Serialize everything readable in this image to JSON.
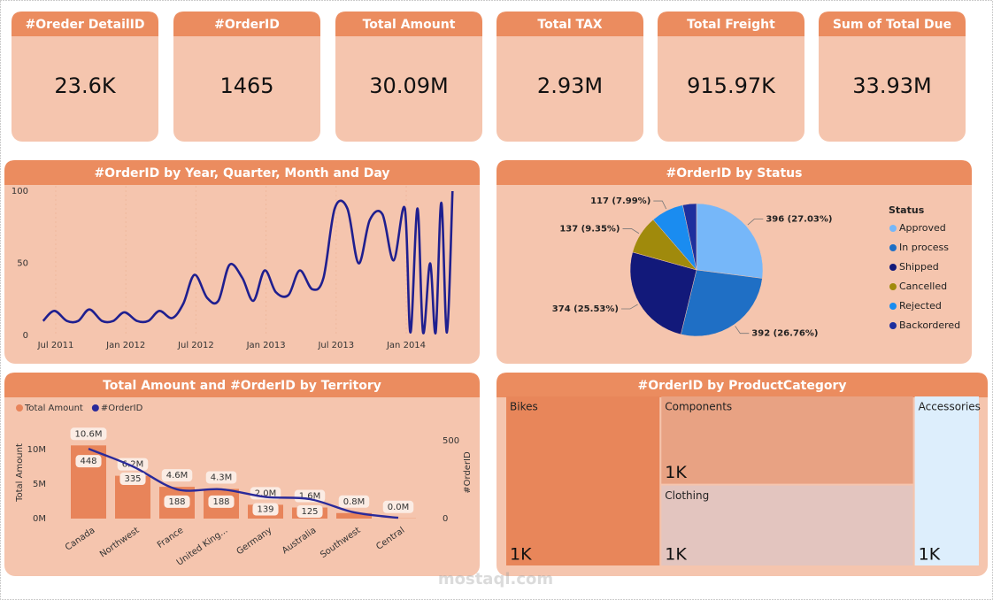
{
  "cards": [
    {
      "title": "#Oreder DetailID",
      "value": "23.6K"
    },
    {
      "title": "#OrderID",
      "value": "1465"
    },
    {
      "title": "Total Amount",
      "value": "30.09M"
    },
    {
      "title": "Total TAX",
      "value": "2.93M"
    },
    {
      "title": "Total Freight",
      "value": "915.97K"
    },
    {
      "title": "Sum of Total Due",
      "value": "33.93M"
    }
  ],
  "chart_data": [
    {
      "type": "line",
      "title": "#OrderID by Year, Quarter, Month and Day",
      "x": [
        2011.41,
        2011.49,
        2011.58,
        2011.66,
        2011.74,
        2011.83,
        2011.91,
        2011.99,
        2012.08,
        2012.16,
        2012.24,
        2012.33,
        2012.41,
        2012.49,
        2012.58,
        2012.66,
        2012.74,
        2012.83,
        2012.91,
        2012.99,
        2013.07,
        2013.16,
        2013.24,
        2013.33,
        2013.41,
        2013.49,
        2013.58,
        2013.66,
        2013.74,
        2013.83,
        2013.91,
        2013.99,
        2014.03,
        2014.08,
        2014.12,
        2014.17,
        2014.21,
        2014.25,
        2014.29,
        2014.33
      ],
      "values": [
        10,
        17,
        10,
        10,
        18,
        10,
        10,
        16,
        10,
        10,
        17,
        12,
        22,
        42,
        26,
        24,
        49,
        40,
        24,
        45,
        30,
        28,
        45,
        32,
        40,
        88,
        88,
        50,
        80,
        84,
        52,
        88,
        2,
        88,
        2,
        50,
        2,
        92,
        2,
        100
      ],
      "color": "#1f1f8f",
      "xlim": [
        2011.355,
        2014.385
      ],
      "xticks": [
        {
          "value": 2011.5,
          "label": "Jul 2011"
        },
        {
          "value": 2012.0,
          "label": "Jan 2012"
        },
        {
          "value": 2012.5,
          "label": "Jul 2012"
        },
        {
          "value": 2013.0,
          "label": "Jan 2013"
        },
        {
          "value": 2013.5,
          "label": "Jul 2013"
        },
        {
          "value": 2014.0,
          "label": "Jan 2014"
        }
      ],
      "ylim": [
        0,
        100
      ],
      "yticks": [
        0,
        50,
        100
      ]
    },
    {
      "type": "pie",
      "title": "#OrderID by Status",
      "legend_title": "Status",
      "categories": [
        "Approved",
        "In process",
        "Shipped",
        "Cancelled",
        "Rejected",
        "Backordered"
      ],
      "values": [
        396,
        392,
        374,
        137,
        117,
        49
      ],
      "value_labels": [
        "396 (27.03%)",
        "392 (26.76%)",
        "374 (25.53%)",
        "137 (9.35%)",
        "117 (7.99%)",
        null
      ],
      "colors": [
        "#76b7f9",
        "#1f6fc5",
        "#12197a",
        "#a08a0c",
        "#1a8cf0",
        "#1e2f9e"
      ]
    },
    {
      "type": "combo",
      "title": "Total Amount and #OrderID by Territory",
      "categories": [
        "Canada",
        "Northwest",
        "France",
        "United King...",
        "Germany",
        "Australia",
        "Southwest",
        "Central"
      ],
      "series": [
        {
          "name": "Total Amount",
          "type": "bar",
          "axis": "y",
          "color": "#e8845a",
          "values": [
            10600000,
            6200000,
            4600000,
            4300000,
            2000000,
            1600000,
            800000,
            30000
          ],
          "value_labels": [
            "10.6M",
            "6.2M",
            "4.6M",
            "4.3M",
            "2.0M",
            "1.6M",
            "0.8M",
            "0.0M"
          ]
        },
        {
          "name": "#OrderID",
          "type": "line",
          "axis": "y2",
          "color": "#2a2a9a",
          "values": [
            448,
            335,
            188,
            188,
            139,
            125,
            40,
            5
          ],
          "value_labels": [
            "448",
            "335",
            "188",
            "188",
            "139",
            "125",
            null,
            null
          ]
        }
      ],
      "ylabel": "Total Amount",
      "y2label": "#OrderID",
      "ylim": [
        0,
        11280000
      ],
      "yticks": [
        {
          "value": 0,
          "label": "0M"
        },
        {
          "value": 5000000,
          "label": "5M"
        },
        {
          "value": 10000000,
          "label": "10M"
        }
      ],
      "y2lim": [
        0,
        500
      ],
      "y2ticks": [
        0,
        500
      ]
    },
    {
      "type": "treemap",
      "title": "#OrderID by ProductCategory",
      "categories": [
        "Bikes",
        "Components",
        "Clothing",
        "Accessories"
      ],
      "values": [
        1414,
        1204,
        1106,
        600
      ],
      "value_labels": [
        "1K",
        "1K",
        "1K",
        "1K"
      ],
      "colors": [
        "#e8865a",
        "#e8a283",
        "#e3c5bf",
        "#ddeefc"
      ]
    }
  ],
  "watermark": "mostaql.com"
}
